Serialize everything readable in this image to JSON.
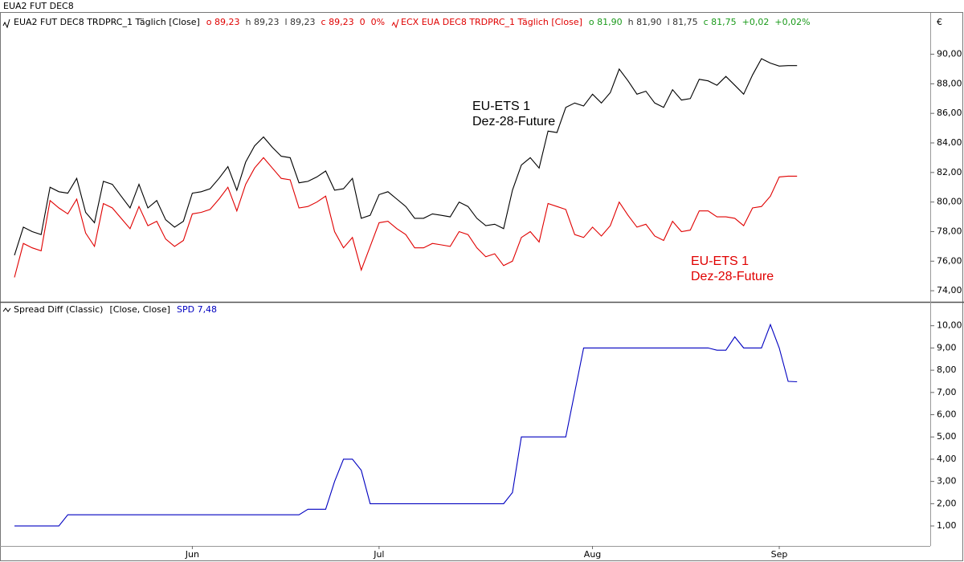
{
  "window_title": "EUA2 FUT DEC8",
  "chart_data": [
    {
      "type": "line",
      "unit": "€",
      "series": [
        {
          "name": "EUA2 FUT DEC8 TRDPRC_1 Täglich [Close]",
          "color": "#000000",
          "stats": [
            {
              "text": "o 89,23",
              "color": "#e00000"
            },
            {
              "text": "h 89,23",
              "color": "#333333"
            },
            {
              "text": "l 89,23",
              "color": "#333333"
            },
            {
              "text": "c 89,23",
              "color": "#e00000"
            },
            {
              "text": "0",
              "color": "#e00000"
            },
            {
              "text": "0%",
              "color": "#e00000"
            }
          ],
          "values": [
            76.4,
            78.3,
            78.0,
            77.8,
            81.0,
            80.7,
            80.6,
            81.6,
            79.3,
            78.6,
            81.4,
            81.2,
            80.4,
            79.6,
            81.2,
            79.6,
            80.1,
            78.8,
            78.3,
            78.7,
            80.6,
            80.7,
            80.9,
            81.6,
            82.4,
            80.8,
            82.7,
            83.8,
            84.4,
            83.7,
            83.1,
            83.0,
            81.3,
            81.4,
            81.7,
            82.1,
            80.8,
            80.9,
            81.6,
            78.9,
            79.1,
            80.5,
            80.7,
            80.2,
            79.7,
            78.9,
            78.9,
            79.2,
            79.1,
            79.0,
            80.0,
            79.7,
            78.9,
            78.4,
            78.5,
            78.2,
            80.8,
            82.5,
            83.0,
            82.3,
            84.8,
            84.7,
            86.4,
            86.7,
            86.5,
            87.3,
            86.7,
            87.4,
            89.0,
            88.2,
            87.3,
            87.5,
            86.7,
            86.4,
            87.6,
            86.9,
            87.0,
            88.3,
            88.2,
            87.9,
            88.5,
            87.9,
            87.3,
            88.6,
            89.7,
            89.4,
            89.2,
            89.23,
            89.23
          ]
        },
        {
          "name": "ECX EUA DEC8 TRDPRC_1 Täglich [Close]",
          "color": "#e00000",
          "stats": [
            {
              "text": "o 81,90",
              "color": "#1a9a1a"
            },
            {
              "text": "h 81,90",
              "color": "#333333"
            },
            {
              "text": "l 81,75",
              "color": "#333333"
            },
            {
              "text": "c 81,75",
              "color": "#1a9a1a"
            },
            {
              "text": "+0,02",
              "color": "#1a9a1a"
            },
            {
              "text": "+0,02%",
              "color": "#1a9a1a"
            }
          ],
          "values": [
            74.9,
            77.2,
            76.9,
            76.7,
            80.1,
            79.6,
            79.2,
            80.2,
            77.9,
            77.0,
            79.9,
            79.6,
            78.9,
            78.2,
            79.7,
            78.4,
            78.7,
            77.5,
            77.0,
            77.4,
            79.2,
            79.3,
            79.5,
            80.2,
            81.0,
            79.4,
            81.2,
            82.3,
            83.0,
            82.3,
            81.6,
            81.5,
            79.6,
            79.7,
            80.0,
            80.4,
            78.0,
            76.9,
            77.6,
            75.4,
            77.0,
            78.6,
            78.7,
            78.2,
            77.8,
            76.9,
            76.9,
            77.2,
            77.1,
            77.0,
            78.0,
            77.8,
            76.9,
            76.3,
            76.5,
            75.7,
            76.0,
            77.6,
            78.0,
            77.3,
            79.9,
            79.7,
            79.5,
            77.8,
            77.6,
            78.3,
            77.7,
            78.4,
            80.0,
            79.1,
            78.3,
            78.5,
            77.7,
            77.4,
            78.7,
            78.0,
            78.1,
            79.4,
            79.4,
            79.0,
            79.0,
            78.9,
            78.4,
            79.6,
            79.7,
            80.4,
            81.7,
            81.75,
            81.75
          ]
        }
      ],
      "annotations": [
        {
          "lines": [
            "EU-ETS 1",
            "Dez-28-Future"
          ],
          "color": "#000000"
        },
        {
          "lines": [
            "EU-ETS 1",
            "Dez-28-Future"
          ],
          "color": "#e00000"
        }
      ],
      "ylim": [
        73.3,
        92.8
      ],
      "yticks": [
        {
          "value": 74,
          "label": "74,00"
        },
        {
          "value": 76,
          "label": "76,00"
        },
        {
          "value": 78,
          "label": "78,00"
        },
        {
          "value": 80,
          "label": "80,00"
        },
        {
          "value": 82,
          "label": "82,00"
        },
        {
          "value": 84,
          "label": "84,00"
        },
        {
          "value": 86,
          "label": "86,00"
        },
        {
          "value": 88,
          "label": "88,00"
        },
        {
          "value": 90,
          "label": "90,00"
        }
      ]
    },
    {
      "type": "line",
      "series": [
        {
          "name": "Spread Diff (Classic)",
          "color": "#0000c0",
          "params": "[Close, Close]",
          "readout": "SPD 7,48",
          "values": [
            1.0,
            1.0,
            1.0,
            1.0,
            1.0,
            1.0,
            1.5,
            1.5,
            1.5,
            1.5,
            1.5,
            1.5,
            1.5,
            1.5,
            1.5,
            1.5,
            1.5,
            1.5,
            1.5,
            1.5,
            1.5,
            1.5,
            1.5,
            1.5,
            1.5,
            1.5,
            1.5,
            1.5,
            1.5,
            1.5,
            1.5,
            1.5,
            1.5,
            1.75,
            1.75,
            1.75,
            3.0,
            4.0,
            4.0,
            3.5,
            2.0,
            2.0,
            2.0,
            2.0,
            2.0,
            2.0,
            2.0,
            2.0,
            2.0,
            2.0,
            2.0,
            2.0,
            2.0,
            2.0,
            2.0,
            2.0,
            2.5,
            5.0,
            5.0,
            5.0,
            5.0,
            5.0,
            5.0,
            7.0,
            9.0,
            9.0,
            9.0,
            9.0,
            9.0,
            9.0,
            9.0,
            9.0,
            9.0,
            9.0,
            9.0,
            9.0,
            9.0,
            9.0,
            9.0,
            8.9,
            8.9,
            9.5,
            9.0,
            9.0,
            9.0,
            10.05,
            9.0,
            7.5,
            7.48
          ]
        }
      ],
      "categories": [
        null,
        null,
        null,
        null,
        null,
        null,
        null,
        null,
        null,
        null,
        null,
        null,
        null,
        null,
        null,
        null,
        null,
        null,
        null,
        null,
        "Jun",
        null,
        null,
        null,
        null,
        null,
        null,
        null,
        null,
        null,
        null,
        null,
        null,
        null,
        null,
        null,
        null,
        null,
        null,
        null,
        null,
        "Jul",
        null,
        null,
        null,
        null,
        null,
        null,
        null,
        null,
        null,
        null,
        null,
        null,
        null,
        null,
        null,
        null,
        null,
        null,
        null,
        null,
        null,
        null,
        null,
        "Aug",
        null,
        null,
        null,
        null,
        null,
        null,
        null,
        null,
        null,
        null,
        null,
        null,
        null,
        null,
        null,
        null,
        null,
        null,
        null,
        null,
        "Sep",
        null,
        null
      ],
      "ylim": [
        0.1,
        11.0
      ],
      "yticks": [
        {
          "value": 1,
          "label": "1,00"
        },
        {
          "value": 2,
          "label": "2,00"
        },
        {
          "value": 3,
          "label": "3,00"
        },
        {
          "value": 4,
          "label": "4,00"
        },
        {
          "value": 5,
          "label": "5,00"
        },
        {
          "value": 6,
          "label": "6,00"
        },
        {
          "value": 7,
          "label": "7,00"
        },
        {
          "value": 8,
          "label": "8,00"
        },
        {
          "value": 9,
          "label": "9,00"
        },
        {
          "value": 10,
          "label": "10,00"
        }
      ]
    }
  ]
}
